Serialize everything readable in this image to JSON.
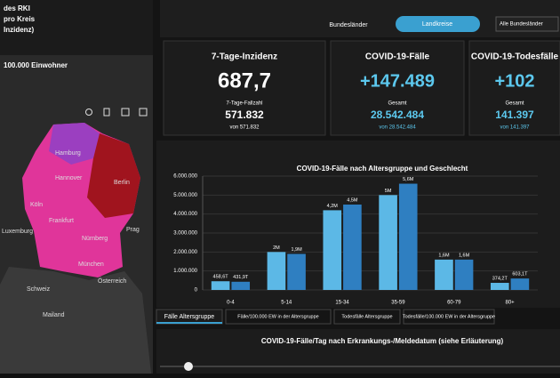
{
  "sidebar": {
    "title_lines": [
      "des RKI",
      "pro Kreis",
      "Inzidenz)"
    ],
    "subtitle": "100.000 Einwohner",
    "cities": [
      "Hamburg",
      "Berlin",
      "Hannover",
      "Köln",
      "Frankfurt",
      "Nürnberg",
      "München",
      "Luxemburg",
      "Prag",
      "Schweiz",
      "Österreich",
      "Mailand"
    ]
  },
  "toggle": {
    "left": "Bundesländer",
    "active": "Landkreise",
    "search": "Alle Bundesländer"
  },
  "cards": [
    {
      "title": "7-Tage-Inzidenz",
      "big": "687,7",
      "sub": "7-Tage-Fallzahl",
      "mid": "571.832",
      "foot": "von 571.832"
    },
    {
      "title": "COVID-19-Fälle",
      "big": "+147.489",
      "sub": "Gesamt",
      "mid": "28.542.484",
      "foot": "von 28.542.484"
    },
    {
      "title": "COVID-19-Todesfälle",
      "big": "+102",
      "sub": "Gesamt",
      "mid": "141.397",
      "foot": "von 141.397"
    }
  ],
  "tabs": [
    "Fälle Altersgruppe",
    "Fälle/100.000 EW in der Altersgruppe",
    "Todesfälle Altersgruppe",
    "Todesfälle/100.000 EW in der Altersgruppe"
  ],
  "bottom_title": "COVID-19-Fälle/Tag nach Erkrankungs-/Meldedatum (siehe Erläuterung)",
  "chart_data": {
    "type": "bar",
    "title": "COVID-19-Fälle nach Altersgruppe und Geschlecht",
    "categories": [
      "0-4",
      "5-14",
      "15-34",
      "35-59",
      "60-79",
      "80+"
    ],
    "series": [
      {
        "color": "#5cb8e6",
        "values": [
          458600,
          2000000,
          4200000,
          5000000,
          1600000,
          374200
        ],
        "value_labels": [
          "458,6T",
          "2M",
          "4,2M",
          "5M",
          "1,6M",
          "374,2T"
        ]
      },
      {
        "color": "#2f7fc1",
        "values": [
          431900,
          1900000,
          4500000,
          5600000,
          1600000,
          603100
        ],
        "value_labels": [
          "431,9T",
          "1,9M",
          "4,5M",
          "5,6M",
          "1,6M",
          "603,1T"
        ]
      }
    ],
    "ylim": [
      0,
      6000000
    ],
    "yticks": [
      0,
      {
        "value": 1000000,
        "label": "1.000.000"
      },
      {
        "value": 2000000,
        "label": "2.000.000"
      },
      {
        "value": 3000000,
        "label": "3.000.000"
      },
      {
        "value": 4000000,
        "label": "4.000.000"
      },
      {
        "value": 5000000,
        "label": "5.000.000"
      },
      {
        "value": 6000000,
        "label": "6.000.000"
      }
    ],
    "grid": true
  }
}
